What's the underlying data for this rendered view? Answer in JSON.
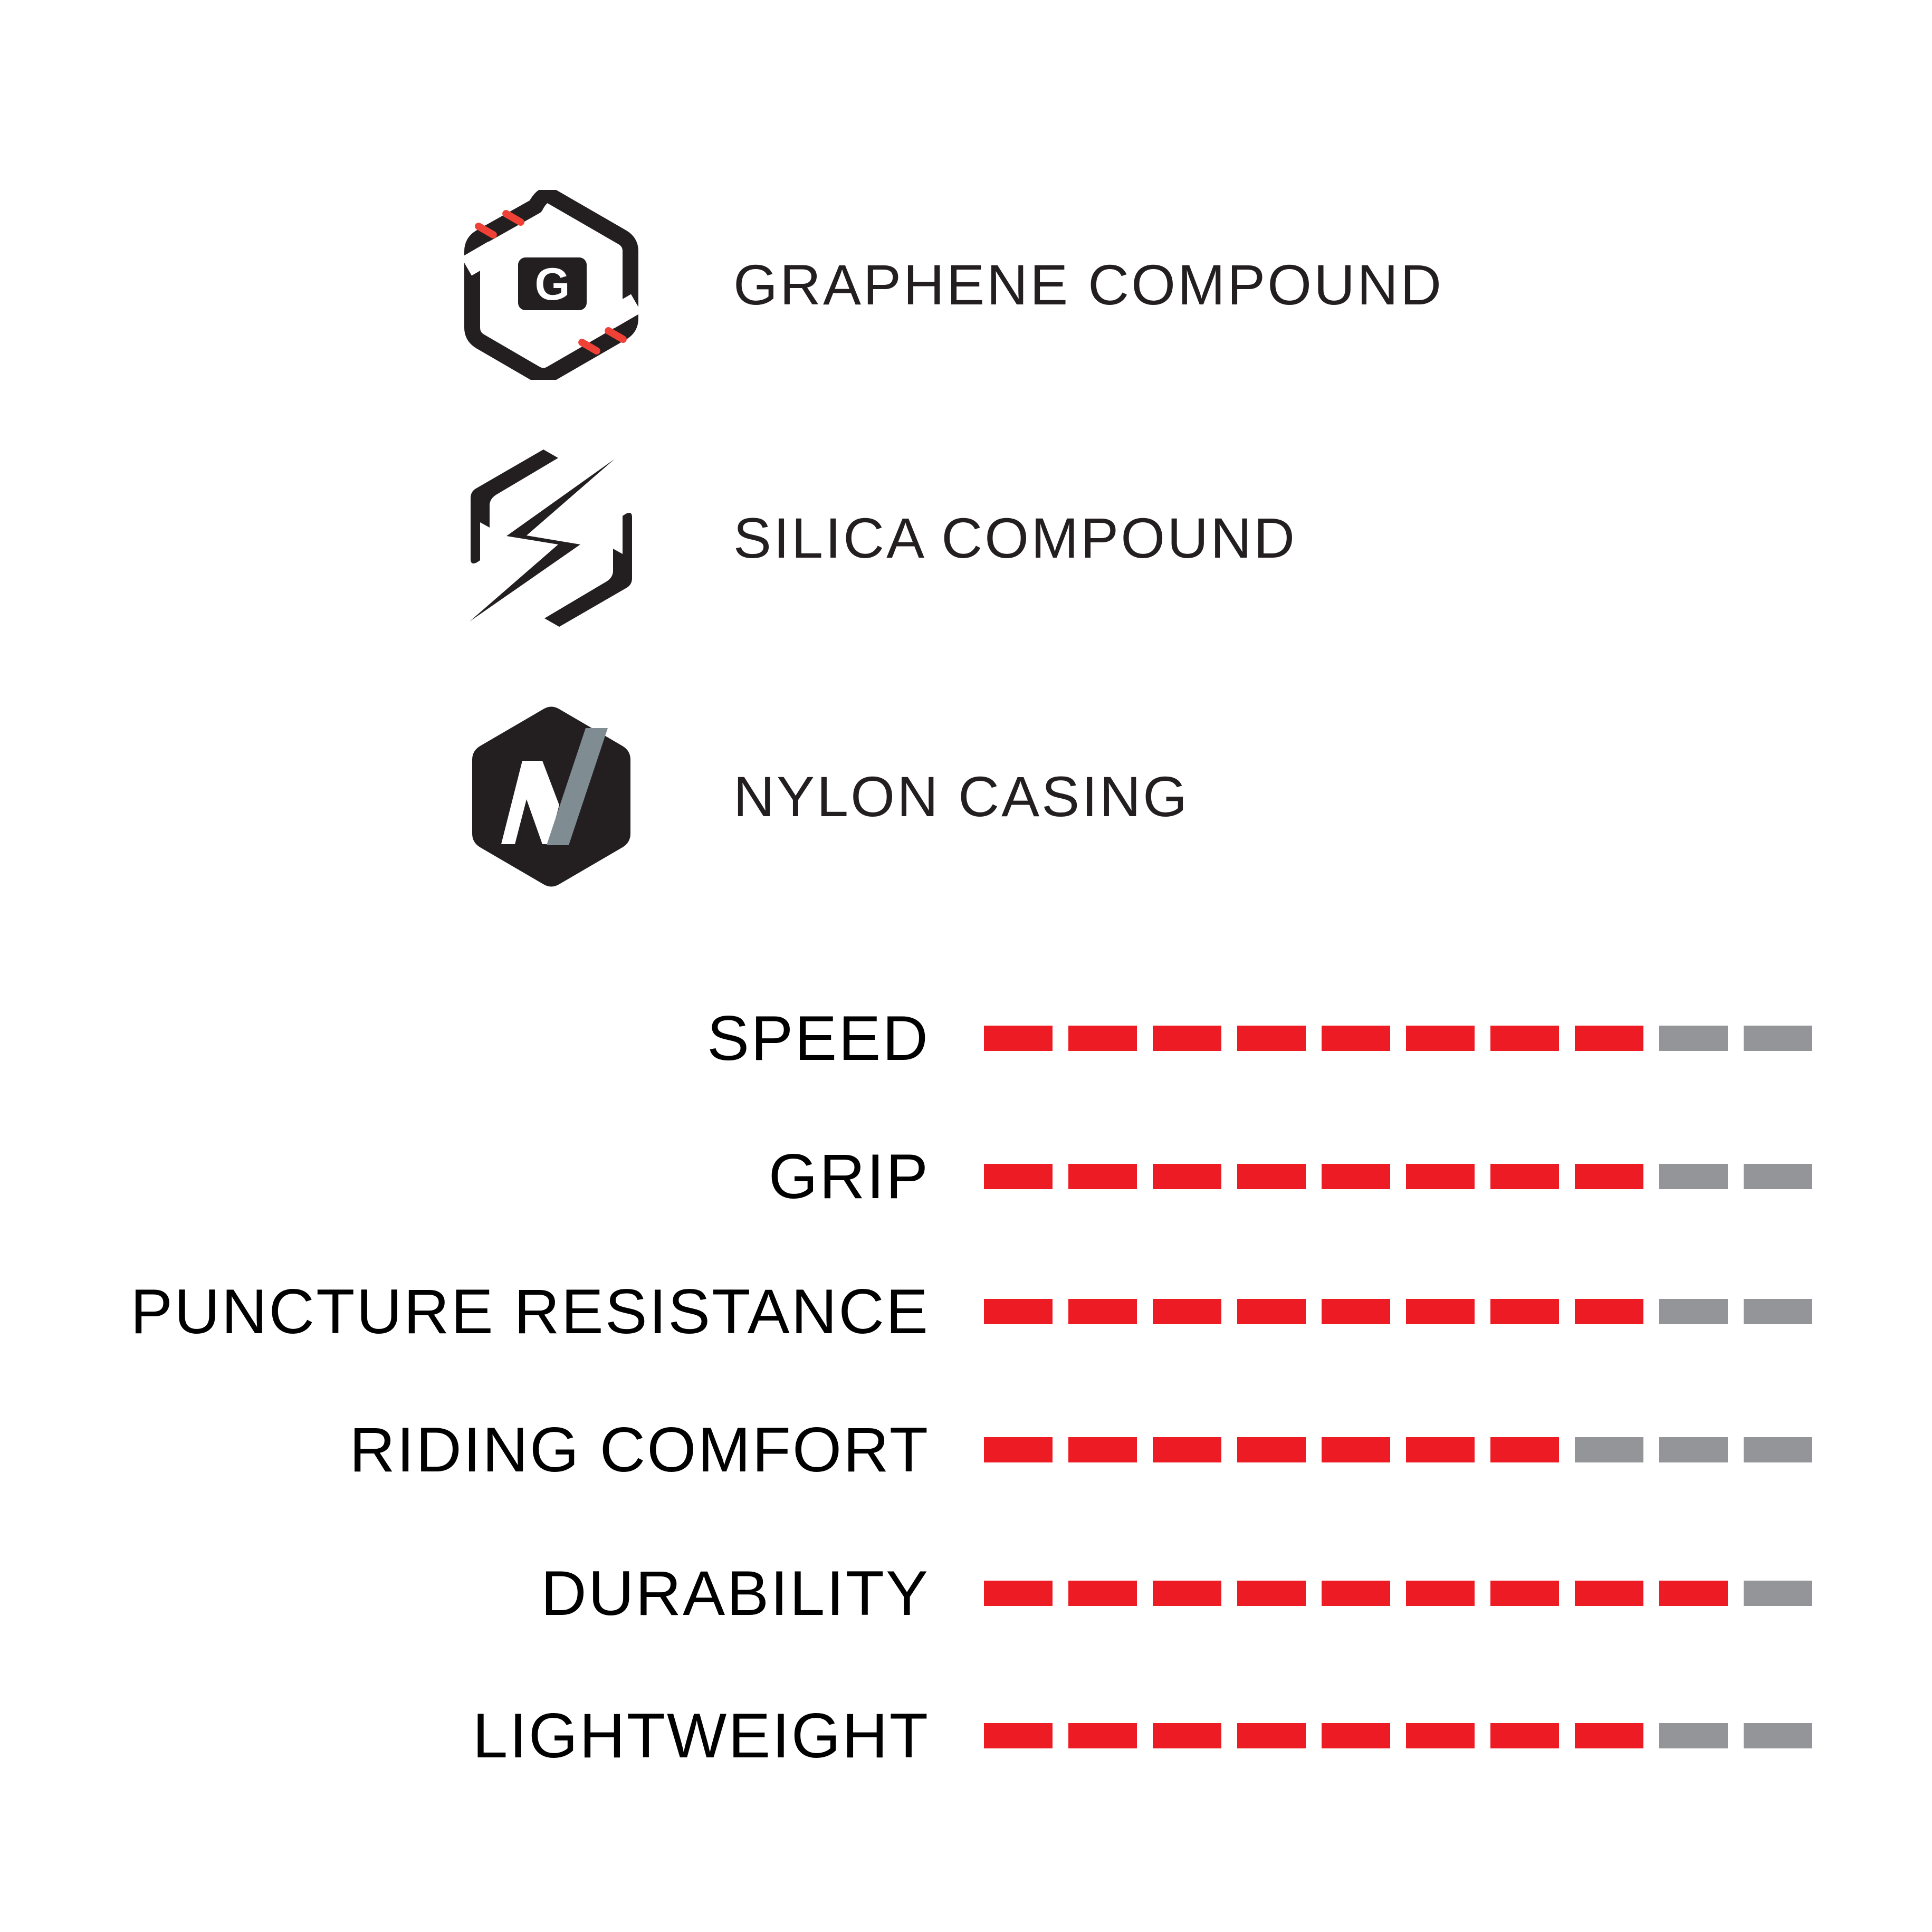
{
  "features": [
    {
      "icon": "graphene-compound-icon",
      "label": "GRAPHENE COMPOUND"
    },
    {
      "icon": "silica-compound-icon",
      "label": "SILICA COMPOUND"
    },
    {
      "icon": "nylon-casing-icon",
      "label": "NYLON CASING"
    }
  ],
  "ratings": [
    {
      "label": "SPEED",
      "value": 8,
      "max": 10
    },
    {
      "label": "GRIP",
      "value": 8,
      "max": 10
    },
    {
      "label": "PUNCTURE RESISTANCE",
      "value": 8,
      "max": 10
    },
    {
      "label": "RIDING COMFORT",
      "value": 7,
      "max": 10
    },
    {
      "label": "DURABILITY",
      "value": 9,
      "max": 10
    },
    {
      "label": "LIGHTWEIGHT",
      "value": 8,
      "max": 10
    }
  ],
  "colors": {
    "filled": "#ed1c24",
    "empty": "#939598",
    "icon_dark": "#231f20",
    "icon_accent_red": "#ef4136",
    "icon_accent_gray": "#7f8c92"
  }
}
